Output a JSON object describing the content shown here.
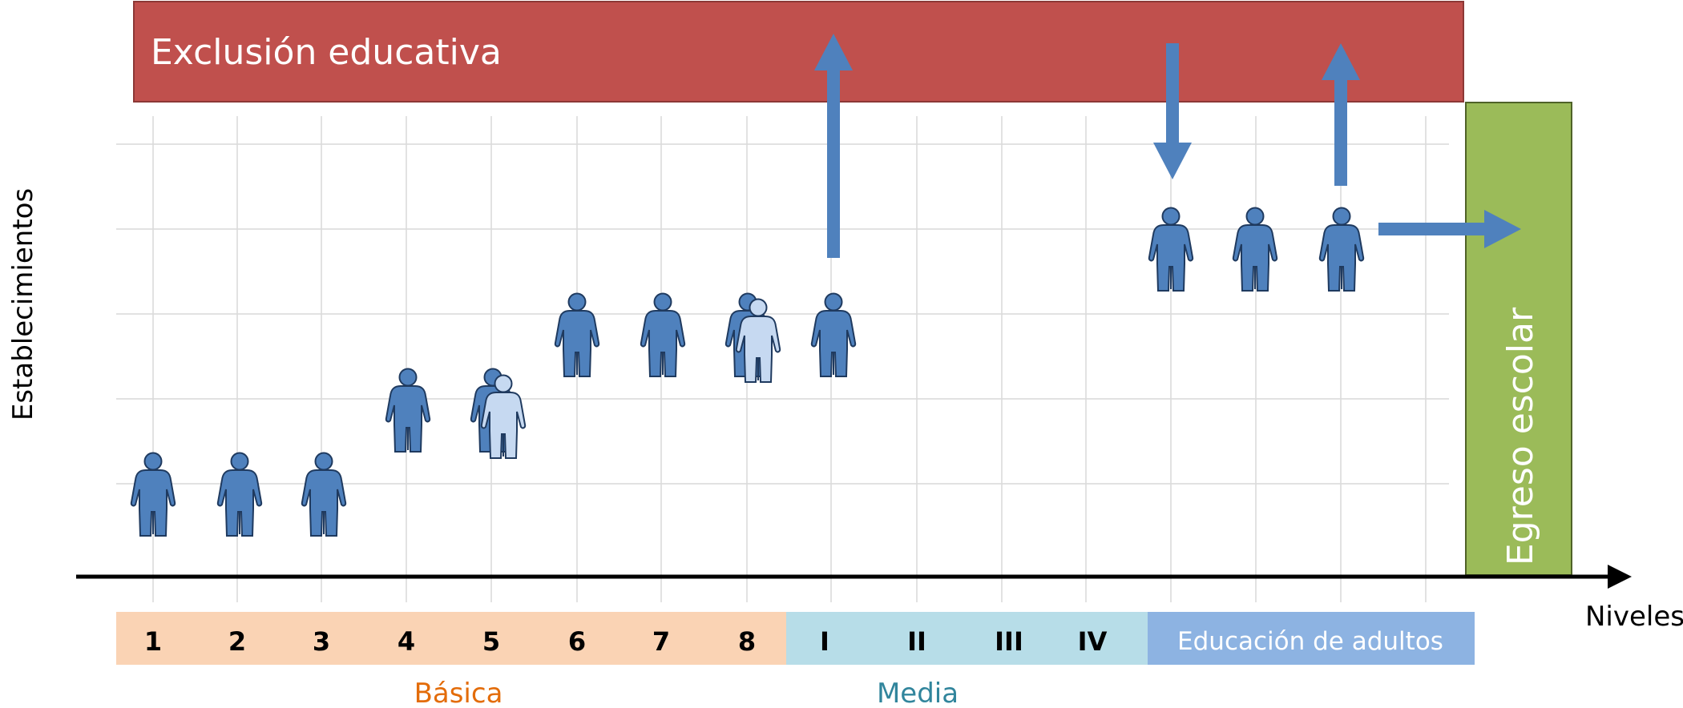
{
  "banner": {
    "title": "Exclusión educativa",
    "color": "#C0504D"
  },
  "exit_box": {
    "label": "Egreso escolar",
    "color": "#9BBB59"
  },
  "axes": {
    "y_label": "Establecimientos",
    "x_label": "Niveles"
  },
  "levels": {
    "basica": {
      "items": [
        "1",
        "2",
        "3",
        "4",
        "5",
        "6",
        "7",
        "8"
      ],
      "name": "Básica",
      "color": "#FAD3B4",
      "name_color": "#E36C0A"
    },
    "media": {
      "items": [
        "I",
        "II",
        "III",
        "IV"
      ],
      "name": "Media",
      "color": "#B7DDE8",
      "name_color": "#31859C"
    },
    "adultos": {
      "label": "Educación de adultos",
      "color": "#8DB3E2"
    }
  },
  "colors": {
    "person": "#4F81BD",
    "person_light": "#C6D9F1",
    "arrow": "#4F81BD",
    "axis": "#000000",
    "grid": "#D9D9D9"
  },
  "people": [
    {
      "level": "1",
      "icon": "person-icon"
    },
    {
      "level": "2",
      "icon": "person-icon"
    },
    {
      "level": "3",
      "icon": "person-icon"
    },
    {
      "level": "4",
      "icon": "person-icon"
    },
    {
      "level": "5",
      "icon": "person-icon"
    },
    {
      "level": "5",
      "icon": "person-light-icon"
    },
    {
      "level": "6",
      "icon": "person-icon"
    },
    {
      "level": "7",
      "icon": "person-icon"
    },
    {
      "level": "8",
      "icon": "person-icon"
    },
    {
      "level": "8",
      "icon": "person-light-icon"
    },
    {
      "level": "I",
      "icon": "person-icon"
    },
    {
      "level": "Educación de adultos",
      "icon": "person-icon"
    },
    {
      "level": "Educación de adultos",
      "icon": "person-icon"
    },
    {
      "level": "Educación de adultos",
      "icon": "person-icon"
    }
  ],
  "arrows": [
    {
      "from": "I",
      "to": "Exclusión educativa",
      "direction": "up"
    },
    {
      "from": "Exclusión educativa",
      "to": "Educación de adultos",
      "direction": "down"
    },
    {
      "from": "Educación de adultos",
      "to": "Exclusión educativa",
      "direction": "up"
    },
    {
      "from": "Educación de adultos",
      "to": "Egreso escolar",
      "direction": "right"
    }
  ]
}
